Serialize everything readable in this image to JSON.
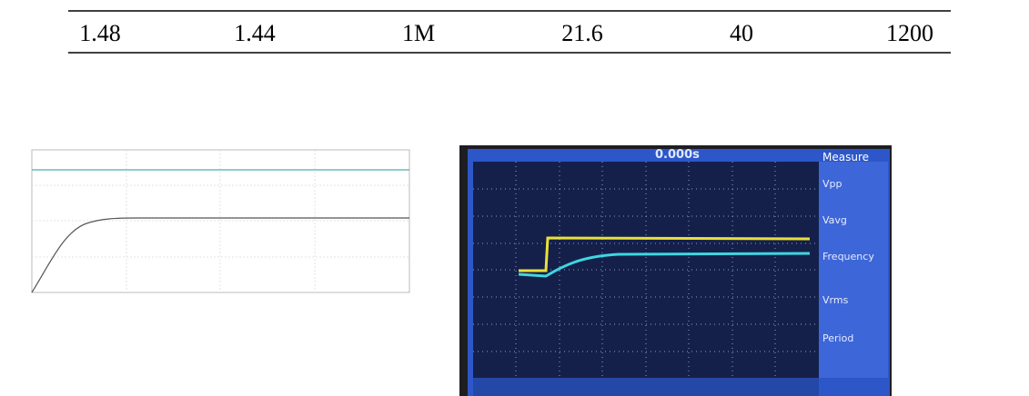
{
  "table": {
    "rows": [
      [
        "1.48",
        "1.44",
        "1M",
        "21.6",
        "40",
        "1200"
      ]
    ]
  },
  "scope": {
    "time": "0.000s",
    "measure": "Measure",
    "items": [
      "Vpp",
      "Vavg",
      "Frequency",
      "Vrms",
      "Period"
    ]
  }
}
